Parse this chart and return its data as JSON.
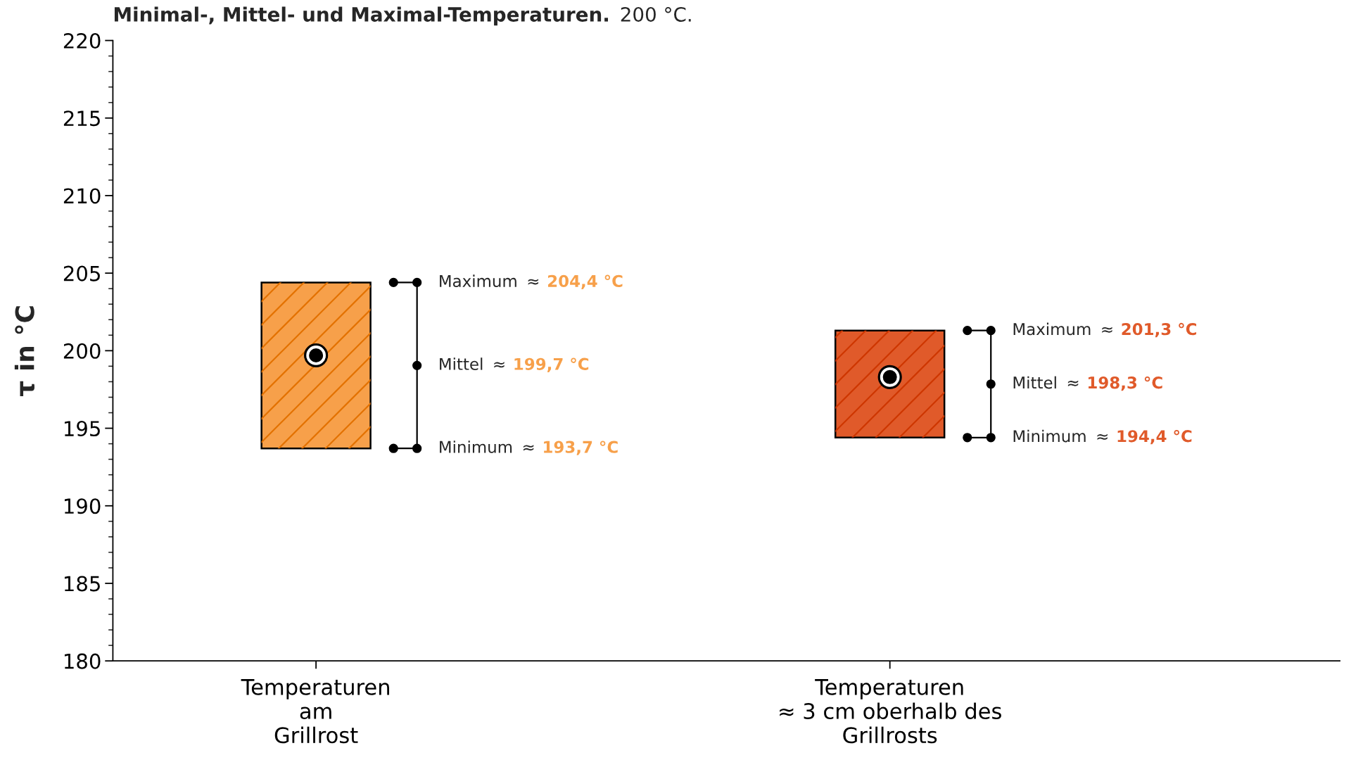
{
  "chart_data": {
    "type": "bar",
    "title": "Minimal-, Mittel- und Maximal-Temperaturen.",
    "subtitle": "200 °C.",
    "ylabel": "τ in °C",
    "categories": [
      "Temperaturen\nam\nGrillrost",
      "Temperaturen\n≈ 3 cm oberhalb des\nGrillrosts"
    ],
    "series": [
      {
        "values": [
          10.7,
          6.9
        ],
        "base": [
          193.7,
          194.4
        ],
        "colors": [
          "#f7a04a",
          "#e05a2a"
        ]
      },
      {
        "type": "scatter",
        "x": [
          "Temperaturen\nam\nGrillrost",
          "Temperaturen\n≈ 3 cm oberhalb des\nGrillrosts"
        ],
        "values": [
          199.7,
          198.3
        ],
        "color": "#000000",
        "marker": "circle"
      }
    ],
    "ylim": [
      180,
      220
    ],
    "yticks": [
      180,
      185,
      190,
      195,
      200,
      205,
      210,
      215,
      220
    ],
    "annotations": [
      "Maximum ≈ 204,4 °C",
      "Mittel ≈ 199,7 °C",
      "Minimum ≈ 193,7 °C",
      "Maximum ≈ 201,3 °C",
      "Mittel ≈ 198,3 °C",
      "Minimum ≈ 194,4 °C"
    ]
  }
}
